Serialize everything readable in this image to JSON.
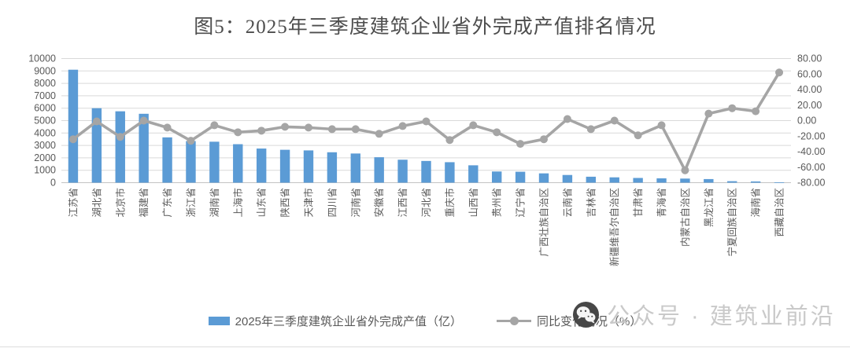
{
  "title": "图5：2025年三季度建筑企业省外完成产值排名情况",
  "watermark": {
    "icon": "wechat-official-account-icon",
    "text": "公众号 · 建筑业前沿"
  },
  "colors": {
    "bar": "#5B9BD5",
    "line": "#A5A5A5",
    "grid": "#D9D9D9",
    "axis_text": "#595959"
  },
  "chart_data": {
    "type": "bar",
    "title": "图5：2025年三季度建筑企业省外完成产值排名情况",
    "categories": [
      "江苏省",
      "湖北省",
      "北京市",
      "福建省",
      "广东省",
      "浙江省",
      "湖南省",
      "上海市",
      "山东省",
      "陕西省",
      "天津市",
      "四川省",
      "河南省",
      "安徽省",
      "江西省",
      "河北省",
      "重庆市",
      "山西省",
      "贵州省",
      "辽宁省",
      "广西壮族自治区",
      "云南省",
      "吉林省",
      "新疆维吾尔自治区",
      "甘肃省",
      "青海省",
      "内蒙古自治区",
      "黑龙江省",
      "宁夏回族自治区",
      "海南省",
      "西藏自治区"
    ],
    "series": [
      {
        "name": "2025年三季度建筑企业省外完成产值（亿）",
        "type": "bar",
        "axis": "left",
        "color": "#5B9BD5",
        "values": [
          9100,
          6000,
          5750,
          5550,
          3650,
          3350,
          3300,
          3100,
          2750,
          2650,
          2600,
          2450,
          2350,
          2050,
          1850,
          1750,
          1650,
          1400,
          900,
          880,
          750,
          620,
          480,
          430,
          380,
          350,
          330,
          290,
          120,
          100,
          30
        ]
      },
      {
        "name": "同比变化情况（%）",
        "type": "line",
        "axis": "right",
        "color": "#A5A5A5",
        "values": [
          -24,
          -1,
          -21,
          0,
          -9,
          -26,
          -6,
          -15,
          -13,
          -8,
          -9,
          -11,
          -11,
          -17,
          -7,
          -1,
          -25,
          -6,
          -15,
          -30,
          -24,
          2,
          -11,
          0,
          -19,
          -6,
          -64,
          9,
          16,
          12,
          62
        ]
      }
    ],
    "left_axis": {
      "min": 0,
      "max": 10000,
      "step": 1000,
      "tick_labels": [
        "10000",
        "9000",
        "8000",
        "7000",
        "6000",
        "5000",
        "4000",
        "3000",
        "2000",
        "1000",
        "0"
      ]
    },
    "right_axis": {
      "min": -80,
      "max": 80,
      "step": 20,
      "tick_labels": [
        "80.00",
        "60.00",
        "40.00",
        "20.00",
        "0.00",
        "-20.00",
        "-40.00",
        "-60.00",
        "-80.00"
      ]
    },
    "grid": true,
    "legend_position": "bottom",
    "x_label_rotation": -90
  }
}
